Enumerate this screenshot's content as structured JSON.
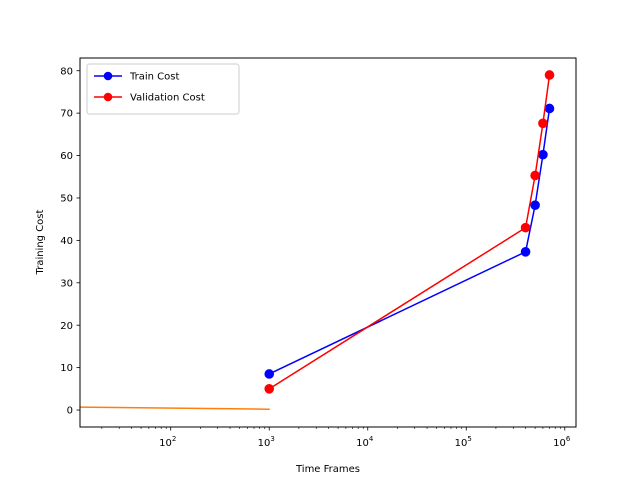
{
  "chart_data": {
    "type": "line",
    "xscale": "log",
    "xlabel": "Time Frames",
    "ylabel": "Training Cost",
    "xlim": [
      12,
      1300000
    ],
    "ylim": [
      -4,
      83
    ],
    "grid": false,
    "legend_position": "top-left",
    "x_ticks": [
      {
        "value": 100,
        "base": "10",
        "exp": "2"
      },
      {
        "value": 1000,
        "base": "10",
        "exp": "3"
      },
      {
        "value": 10000,
        "base": "10",
        "exp": "4"
      },
      {
        "value": 100000,
        "base": "10",
        "exp": "5"
      },
      {
        "value": 1000000,
        "base": "10",
        "exp": "6"
      }
    ],
    "y_ticks": [
      "0",
      "10",
      "20",
      "30",
      "40",
      "50",
      "60",
      "70",
      "80"
    ],
    "series": [
      {
        "name": "Train Cost",
        "color": "#0000ff",
        "marker": "circle",
        "x": [
          1000,
          400000,
          500000,
          600000,
          700000
        ],
        "y": [
          8.5,
          37.3,
          48.3,
          60.2,
          71.1
        ]
      },
      {
        "name": "Validation Cost",
        "color": "#ff0000",
        "marker": "circle",
        "x": [
          1000,
          400000,
          500000,
          600000,
          700000
        ],
        "y": [
          5.0,
          43.0,
          55.3,
          67.6,
          79.0
        ]
      },
      {
        "color": "#ff7f0e",
        "marker": "none",
        "x": [
          12,
          1000
        ],
        "y": [
          0.7,
          0.2
        ]
      }
    ]
  }
}
